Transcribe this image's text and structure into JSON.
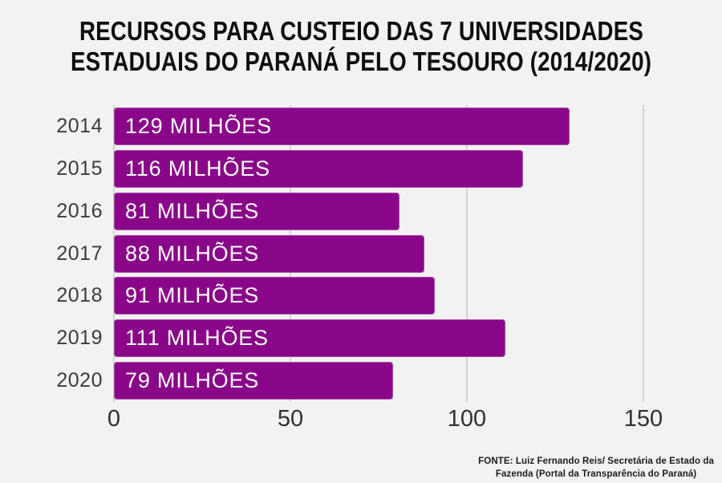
{
  "title": {
    "line1": "RECURSOS PARA CUSTEIO DAS 7 UNIVERSIDADES",
    "line2": "ESTADUAIS DO PARANÁ PELO TESOURO (2014/2020)"
  },
  "chart_data": {
    "type": "bar",
    "orientation": "horizontal",
    "title": "RECURSOS PARA CUSTEIO DAS 7 UNIVERSIDADES ESTADUAIS DO PARANÁ PELO TESOURO (2014/2020)",
    "categories": [
      "2014",
      "2015",
      "2016",
      "2017",
      "2018",
      "2019",
      "2020"
    ],
    "values": [
      129,
      116,
      81,
      88,
      91,
      111,
      79
    ],
    "bar_labels": [
      "129 MILHÕES",
      "116 MILHÕES",
      "81 MILHÕES",
      "88 MILHÕES",
      "91 MILHÕES",
      "111 MILHÕES",
      "79 MILHÕES"
    ],
    "x_ticks": [
      0,
      50,
      100,
      150
    ],
    "xlim": [
      0,
      150
    ],
    "xlabel": "",
    "ylabel": "",
    "grid": true,
    "legend": false,
    "unit": "milhões"
  },
  "footer": {
    "line1": "FONTE: Luiz Fernando Reis/ Secretária de Estado da",
    "line2": "Fazenda (Portal da Transparência do Paraná)"
  },
  "colors": {
    "background": "#f2f2f2",
    "bar": "#8a0689",
    "gridline": "#b3b3b3",
    "axis_text": "#3c3c3c",
    "title_text": "#0d0d0d",
    "bar_label_text": "#ffffff"
  }
}
